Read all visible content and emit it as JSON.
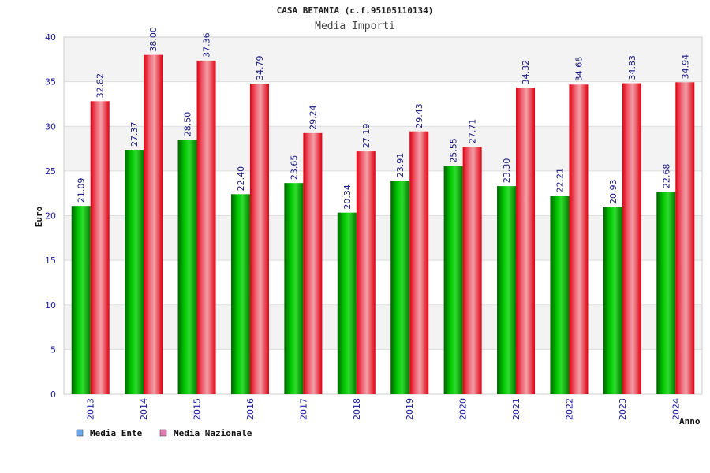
{
  "chart_data": {
    "type": "bar",
    "title": "CASA BETANIA (c.f.95105110134)",
    "subtitle": "Media Importi",
    "xlabel": "Anno",
    "ylabel": "Euro",
    "ylim": [
      0,
      40
    ],
    "yticks": [
      0,
      5,
      10,
      15,
      20,
      25,
      30,
      35,
      40
    ],
    "grid": true,
    "legend_position": "bottom-left",
    "categories": [
      "2013",
      "2014",
      "2015",
      "2016",
      "2017",
      "2018",
      "2019",
      "2020",
      "2021",
      "2022",
      "2023",
      "2024"
    ],
    "series": [
      {
        "name": "Media Ente",
        "color": "#00b000",
        "legend_color": "#6aa8f0",
        "values": [
          21.09,
          27.37,
          28.5,
          22.4,
          23.65,
          20.34,
          23.91,
          25.55,
          23.3,
          22.21,
          20.93,
          22.68
        ],
        "labels": [
          "21.09",
          "27.37",
          "28.50",
          "22.40",
          "23.65",
          "20.34",
          "23.91",
          "25.55",
          "23.30",
          "22.21",
          "20.93",
          "22.68"
        ]
      },
      {
        "name": "Media Nazionale",
        "color": "#e8101e",
        "legend_color": "#e07ab0",
        "values": [
          32.82,
          38.0,
          37.36,
          34.79,
          29.24,
          27.19,
          29.43,
          27.71,
          34.32,
          34.68,
          34.83,
          34.94
        ],
        "labels": [
          "32.82",
          "38.00",
          "37.36",
          "34.79",
          "29.24",
          "27.19",
          "29.43",
          "27.71",
          "34.32",
          "34.68",
          "34.83",
          "34.94"
        ]
      }
    ]
  }
}
